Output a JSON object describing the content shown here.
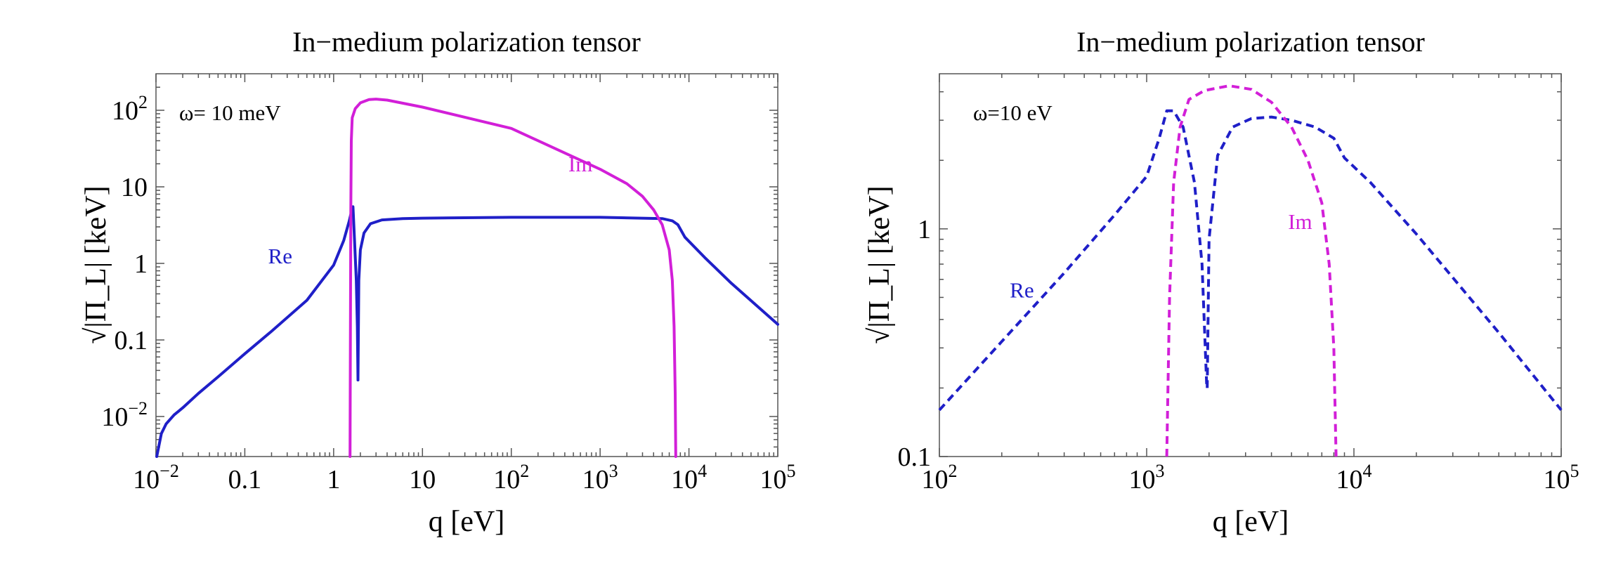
{
  "chart_data": [
    {
      "type": "line",
      "title": "In−medium polarization tensor",
      "xlabel": "q [eV]",
      "ylabel": "√|Π_L| [keV]",
      "xscale": "log",
      "yscale": "log",
      "xlim": [
        0.01,
        100000
      ],
      "ylim": [
        0.003,
        300
      ],
      "annotation": "ω= 10 meV",
      "xticks": [
        {
          "v": 0.01,
          "base": "10",
          "exp": "−2",
          "text": ""
        },
        {
          "v": 0.1,
          "base": "",
          "exp": "",
          "text": "0.1"
        },
        {
          "v": 1,
          "base": "",
          "exp": "",
          "text": "1"
        },
        {
          "v": 10,
          "base": "",
          "exp": "",
          "text": "10"
        },
        {
          "v": 100,
          "base": "10",
          "exp": "2",
          "text": ""
        },
        {
          "v": 1000,
          "base": "10",
          "exp": "3",
          "text": ""
        },
        {
          "v": 10000,
          "base": "10",
          "exp": "4",
          "text": ""
        },
        {
          "v": 100000,
          "base": "10",
          "exp": "5",
          "text": ""
        }
      ],
      "yticks": [
        {
          "v": 0.01,
          "base": "10",
          "exp": "−2",
          "text": ""
        },
        {
          "v": 0.1,
          "base": "",
          "exp": "",
          "text": "0.1"
        },
        {
          "v": 1,
          "base": "",
          "exp": "",
          "text": "1"
        },
        {
          "v": 10,
          "base": "",
          "exp": "",
          "text": "10"
        },
        {
          "v": 100,
          "base": "10",
          "exp": "2",
          "text": ""
        }
      ],
      "series": [
        {
          "name": "Re",
          "color": "#1f1fc8",
          "dashed": false,
          "label_at": {
            "x": 0.25,
            "y": 1.0
          },
          "segments": [
            [
              [
                0.0102,
                0.003
              ],
              [
                0.0115,
                0.006
              ],
              [
                0.013,
                0.008
              ],
              [
                0.016,
                0.0105
              ],
              [
                0.02,
                0.013
              ],
              [
                0.03,
                0.02
              ],
              [
                0.05,
                0.033
              ],
              [
                0.1,
                0.066
              ],
              [
                0.2,
                0.13
              ],
              [
                0.5,
                0.33
              ],
              [
                1.0,
                0.95
              ],
              [
                1.3,
                2.0
              ],
              [
                1.5,
                3.6
              ],
              [
                1.6,
                5.0
              ],
              [
                1.65,
                5.5
              ],
              [
                1.72,
                2.0
              ],
              [
                1.8,
                0.6
              ],
              [
                1.85,
                0.15
              ],
              [
                1.88,
                0.03
              ]
            ],
            [
              [
                1.88,
                0.03
              ],
              [
                1.92,
                0.6
              ],
              [
                2.0,
                1.5
              ],
              [
                2.2,
                2.5
              ],
              [
                2.6,
                3.3
              ],
              [
                3.5,
                3.7
              ],
              [
                6,
                3.85
              ],
              [
                10,
                3.9
              ],
              [
                100,
                4.0
              ],
              [
                1000,
                4.0
              ],
              [
                5000,
                3.85
              ],
              [
                6500,
                3.6
              ],
              [
                7500,
                3.2
              ],
              [
                9000,
                2.2
              ],
              [
                15000,
                1.2
              ],
              [
                30000,
                0.55
              ],
              [
                100000,
                0.16
              ]
            ]
          ]
        },
        {
          "name": "Im",
          "color": "#d21fd8",
          "dashed": false,
          "label_at": {
            "x": 600,
            "y": 16
          },
          "segments": [
            [
              [
                1.53,
                0.003
              ],
              [
                1.54,
                0.05
              ],
              [
                1.56,
                5
              ],
              [
                1.58,
                40
              ],
              [
                1.62,
                80
              ],
              [
                1.75,
                105
              ],
              [
                2.0,
                125
              ],
              [
                2.5,
                138
              ],
              [
                3.0,
                140
              ],
              [
                4.0,
                136
              ],
              [
                10,
                110
              ],
              [
                100,
                58
              ],
              [
                1000,
                17
              ],
              [
                2000,
                11
              ],
              [
                3000,
                7.5
              ],
              [
                4000,
                5.0
              ],
              [
                5000,
                3.2
              ],
              [
                6000,
                1.5
              ],
              [
                6500,
                0.6
              ],
              [
                6800,
                0.15
              ],
              [
                7000,
                0.02
              ],
              [
                7100,
                0.003
              ]
            ]
          ]
        }
      ]
    },
    {
      "type": "line",
      "title": "In−medium polarization tensor",
      "xlabel": "q [eV]",
      "ylabel": "√|Π_L| [keV]",
      "xscale": "log",
      "yscale": "log",
      "xlim": [
        100,
        100000
      ],
      "ylim": [
        0.1,
        4.8
      ],
      "annotation": "ω=10 eV",
      "xticks": [
        {
          "v": 100,
          "base": "10",
          "exp": "2",
          "text": ""
        },
        {
          "v": 1000,
          "base": "10",
          "exp": "3",
          "text": ""
        },
        {
          "v": 10000,
          "base": "10",
          "exp": "4",
          "text": ""
        },
        {
          "v": 100000,
          "base": "10",
          "exp": "5",
          "text": ""
        }
      ],
      "yticks": [
        {
          "v": 0.1,
          "base": "",
          "exp": "",
          "text": "0.1"
        },
        {
          "v": 1,
          "base": "",
          "exp": "",
          "text": "1"
        }
      ],
      "series": [
        {
          "name": "Re",
          "color": "#1f1fc8",
          "dashed": true,
          "label_at": {
            "x": 250,
            "y": 0.5
          },
          "segments": [
            [
              [
                100,
                0.16
              ],
              [
                200,
                0.32
              ],
              [
                400,
                0.64
              ],
              [
                700,
                1.15
              ],
              [
                1000,
                1.7
              ],
              [
                1150,
                2.5
              ],
              [
                1250,
                3.3
              ],
              [
                1350,
                3.3
              ],
              [
                1500,
                2.8
              ],
              [
                1700,
                1.6
              ],
              [
                1850,
                0.7
              ],
              [
                1950,
                0.2
              ]
            ],
            [
              [
                1960,
                0.2
              ],
              [
                2000,
                0.9
              ],
              [
                2200,
                2.1
              ],
              [
                2600,
                2.8
              ],
              [
                3200,
                3.05
              ],
              [
                4000,
                3.1
              ],
              [
                5000,
                3.0
              ],
              [
                6500,
                2.8
              ],
              [
                8000,
                2.5
              ],
              [
                9000,
                2.05
              ],
              [
                12000,
                1.6
              ],
              [
                20000,
                0.95
              ],
              [
                50000,
                0.35
              ],
              [
                100000,
                0.16
              ]
            ]
          ]
        },
        {
          "name": "Im",
          "color": "#d21fd8",
          "dashed": true,
          "label_at": {
            "x": 5500,
            "y": 1.0
          },
          "segments": [
            [
              [
                1250,
                0.1
              ],
              [
                1290,
                0.5
              ],
              [
                1350,
                1.6
              ],
              [
                1450,
                2.8
              ],
              [
                1600,
                3.7
              ],
              [
                1900,
                4.05
              ],
              [
                2500,
                4.25
              ],
              [
                3200,
                4.1
              ],
              [
                4000,
                3.6
              ],
              [
                5000,
                2.8
              ],
              [
                6000,
                2.0
              ],
              [
                7000,
                1.3
              ],
              [
                7600,
                0.7
              ],
              [
                8000,
                0.3
              ],
              [
                8200,
                0.1
              ]
            ]
          ]
        }
      ]
    }
  ]
}
